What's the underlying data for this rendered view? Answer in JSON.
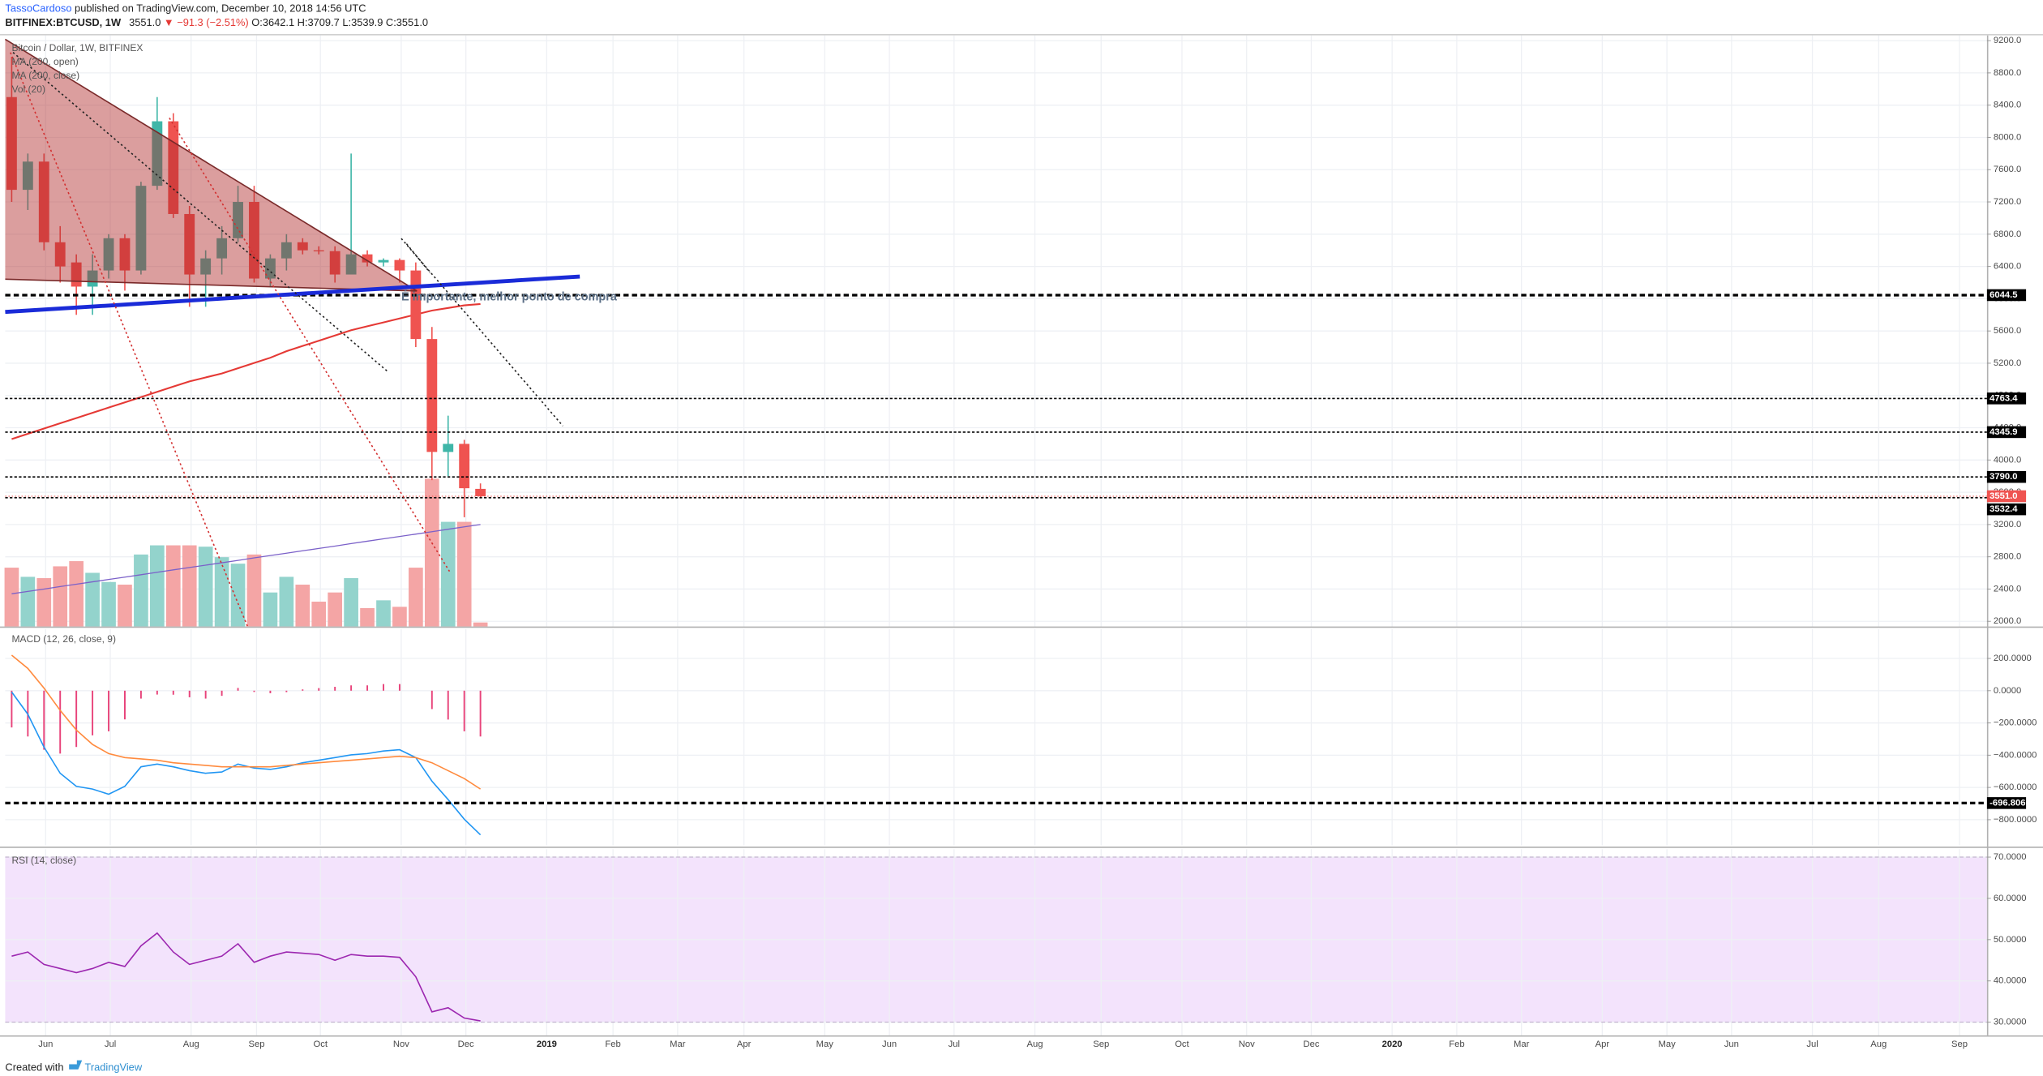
{
  "header": {
    "author": "TassoCardoso",
    "published": "published on TradingView.com, December 10, 2018 14:56 UTC",
    "symbol": "BITFINEX:BTCUSD, 1W",
    "last": "3551.0",
    "change": "▼ −91.3 (−2.51%)",
    "ohlc": [
      {
        "key": "O:",
        "value": "3642.1"
      },
      {
        "key": "H:",
        "value": "3709.7"
      },
      {
        "key": "L:",
        "value": "3539.9"
      },
      {
        "key": "C:",
        "value": "3551.0"
      }
    ]
  },
  "chart_data": [
    {
      "type": "candlestick",
      "title": "Bitcoin / Dollar, 1W, BITFINEX",
      "studies": [
        "MA (200, open)",
        "MA (200, close)",
        "Vol (20)"
      ],
      "annotation": "É importante, melhor ponto de compra",
      "x": [
        0,
        1,
        2,
        3,
        4,
        5,
        6,
        7,
        8,
        9,
        10,
        11,
        12,
        13,
        14,
        15,
        16,
        17,
        18,
        19,
        20,
        21,
        22,
        23,
        24,
        25,
        26,
        27,
        28,
        29
      ],
      "open": [
        8500,
        7350,
        7700,
        6700,
        6450,
        6150,
        6350,
        6750,
        6350,
        7400,
        8200,
        7050,
        6300,
        6500,
        6750,
        7200,
        6250,
        6500,
        6700,
        6600,
        6590,
        6300,
        6550,
        6450,
        6480,
        6350,
        5500,
        4100,
        4200,
        3642.1
      ],
      "high": [
        9000,
        7800,
        7800,
        6900,
        6550,
        6550,
        6800,
        6800,
        7450,
        8500,
        8300,
        7150,
        6600,
        6900,
        7400,
        7400,
        6550,
        6800,
        6750,
        6650,
        6650,
        7800,
        6600,
        6500,
        6500,
        6450,
        5650,
        4550,
        4250,
        3709.7
      ],
      "low": [
        7200,
        7100,
        6600,
        6200,
        5800,
        5800,
        6250,
        6100,
        6300,
        7350,
        7000,
        5900,
        5900,
        6300,
        6700,
        6200,
        6150,
        6350,
        6550,
        6550,
        6200,
        6300,
        6400,
        6400,
        6200,
        5400,
        3750,
        3800,
        3290,
        3539.9
      ],
      "close": [
        7350,
        7700,
        6700,
        6400,
        6150,
        6350,
        6750,
        6350,
        7400,
        8200,
        7050,
        6300,
        6500,
        6750,
        7200,
        6250,
        6500,
        6700,
        6600,
        6590,
        6300,
        6550,
        6450,
        6480,
        6350,
        5500,
        4100,
        4200,
        3650,
        3551
      ],
      "up_color": "#3fb6a8",
      "down_color": "#ef5350",
      "ma": {
        "color": "#e53935",
        "values": [
          4260,
          4325,
          4390,
          4455,
          4520,
          4585,
          4650,
          4715,
          4780,
          4845,
          4910,
          4975,
          5024,
          5073,
          5138,
          5203,
          5268,
          5349,
          5414,
          5479,
          5544,
          5609,
          5658,
          5706,
          5755,
          5804,
          5853,
          5885,
          5918,
          5934
        ]
      },
      "volume": {
        "values": [
          39800,
          33600,
          32700,
          40700,
          44200,
          36300,
          30100,
          28300,
          48700,
          54900,
          54900,
          54900,
          54000,
          46900,
          42500,
          48700,
          23000,
          33600,
          28300,
          16800,
          23000,
          32700,
          12400,
          17700,
          13300,
          39800,
          100000,
          70800,
          70800,
          2700
        ],
        "ma_values": [
          22100,
          23700,
          25300,
          27000,
          28600,
          30200,
          31800,
          33400,
          35000,
          36700,
          38300,
          39900,
          41500,
          43100,
          44700,
          46400,
          48000,
          49600,
          51200,
          52800,
          54400,
          56100,
          57700,
          59300,
          60900,
          62500,
          64100,
          65800,
          67400,
          69000
        ],
        "vlim": [
          0,
          400000
        ],
        "up_color": "#93d3cc",
        "down_color": "#f4a5a5",
        "ma_color": "#7b61c9"
      },
      "levels": [
        {
          "value": 6044.5,
          "width": 2
        },
        {
          "value": 4763.4,
          "width": 1
        },
        {
          "value": 4345.9,
          "width": 1
        },
        {
          "value": 3790,
          "label": "3790.0",
          "width": 1
        },
        {
          "value": 3532.4,
          "width": 1
        }
      ],
      "price_line": {
        "value": 3551,
        "label": "3551.0",
        "color": "#ef5350"
      },
      "xlim": [
        -0.4,
        122.2
      ],
      "xticks": [
        {
          "value": 2.1,
          "label": "Jun"
        },
        {
          "value": 6.1,
          "label": "Jul"
        },
        {
          "value": 11.1,
          "label": "Aug"
        },
        {
          "value": 15.15,
          "label": "Sep"
        },
        {
          "value": 19.1,
          "label": "Oct"
        },
        {
          "value": 24.1,
          "label": "Nov"
        },
        {
          "value": 28.1,
          "label": "Dec"
        },
        {
          "value": 33.1,
          "label": "2019"
        },
        {
          "value": 37.2,
          "label": "Feb"
        },
        {
          "value": 41.2,
          "label": "Mar"
        },
        {
          "value": 45.3,
          "label": "Apr"
        },
        {
          "value": 50.3,
          "label": "May"
        },
        {
          "value": 54.3,
          "label": "Jun"
        },
        {
          "value": 58.3,
          "label": "Jul"
        },
        {
          "value": 63.3,
          "label": "Aug"
        },
        {
          "value": 67.4,
          "label": "Sep"
        },
        {
          "value": 72.4,
          "label": "Oct"
        },
        {
          "value": 76.4,
          "label": "Nov"
        },
        {
          "value": 80.4,
          "label": "Dec"
        },
        {
          "value": 85.4,
          "label": "2020"
        },
        {
          "value": 89.4,
          "label": "Feb"
        },
        {
          "value": 93.4,
          "label": "Mar"
        },
        {
          "value": 98.4,
          "label": "Apr"
        },
        {
          "value": 102.4,
          "label": "May"
        },
        {
          "value": 106.4,
          "label": "Jun"
        },
        {
          "value": 111.4,
          "label": "Jul"
        },
        {
          "value": 115.5,
          "label": "Aug"
        },
        {
          "value": 120.5,
          "label": "Sep"
        }
      ],
      "ylim": [
        1936,
        9265
      ],
      "yticks": [
        {
          "value": 2000,
          "label": "2000.0"
        },
        {
          "value": 2400,
          "label": "2400.0"
        },
        {
          "value": 2800,
          "label": "2800.0"
        },
        {
          "value": 3200,
          "label": "3200.0"
        },
        {
          "value": 3600,
          "label": "3600.0"
        },
        {
          "value": 4000,
          "label": "4000.0"
        },
        {
          "value": 4400,
          "label": "4400.0"
        },
        {
          "value": 4800,
          "label": "4800.0"
        },
        {
          "value": 5200,
          "label": "5200.0"
        },
        {
          "value": 5600,
          "label": "5600.0"
        },
        {
          "value": 6000,
          "label": "6000.0"
        },
        {
          "value": 6400,
          "label": "6400.0"
        },
        {
          "value": 6800,
          "label": "6800.0"
        },
        {
          "value": 7200,
          "label": "7200.0"
        },
        {
          "value": 7600,
          "label": "7600.0"
        },
        {
          "value": 8000,
          "label": "8000.0"
        },
        {
          "value": 8400,
          "label": "8400.0"
        },
        {
          "value": 8800,
          "label": "8800.0"
        },
        {
          "value": 9200,
          "label": "9200.0"
        }
      ],
      "grid": true
    },
    {
      "type": "macd",
      "title": "MACD (12, 26, close, 9)",
      "x": [
        0,
        1,
        2,
        3,
        4,
        5,
        6,
        7,
        8,
        9,
        10,
        11,
        12,
        13,
        14,
        15,
        16,
        17,
        18,
        19,
        20,
        21,
        22,
        23,
        24,
        25,
        26,
        27,
        28,
        29
      ],
      "series": [
        {
          "color": "#2196f3",
          "values": [
            -8,
            -146,
            -350,
            -512,
            -593,
            -610,
            -642,
            -593,
            -472,
            -455,
            -472,
            -496,
            -512,
            -504,
            -455,
            -480,
            -488,
            -472,
            -447,
            -431,
            -415,
            -398,
            -390,
            -374,
            -366,
            -415,
            -561,
            -675,
            -797,
            -894
          ]
        },
        {
          "color": "#ff8a3d",
          "values": [
            220,
            138,
            16,
            -122,
            -244,
            -333,
            -390,
            -415,
            -423,
            -431,
            -447,
            -455,
            -463,
            -472,
            -472,
            -472,
            -472,
            -463,
            -455,
            -447,
            -439,
            -431,
            -423,
            -415,
            -407,
            -415,
            -447,
            -496,
            -545,
            -610
          ]
        }
      ],
      "histogram": {
        "color": "#e8437a",
        "values": [
          -228,
          -284,
          -366,
          -390,
          -349,
          -277,
          -252,
          -178,
          -49,
          -24,
          -25,
          -41,
          -49,
          -32,
          17,
          -8,
          -16,
          -9,
          8,
          16,
          24,
          33,
          33,
          41,
          41,
          0,
          -114,
          -179,
          -252,
          -284
        ]
      },
      "levels": [
        {
          "value": -696.8066,
          "width": 2
        }
      ],
      "ylim": [
        -959,
        382
      ],
      "yticks": [
        {
          "value": 200,
          "label": "200.0000"
        },
        {
          "value": 0,
          "label": "0.0000"
        },
        {
          "value": -200,
          "label": "−200.0000"
        },
        {
          "value": -400,
          "label": "−400.0000"
        },
        {
          "value": -600,
          "label": "−600.0000"
        },
        {
          "value": -800,
          "label": "−800.0000"
        }
      ],
      "grid": true
    },
    {
      "type": "rsi",
      "title": "RSI (14, close)",
      "x": [
        0,
        1,
        2,
        3,
        4,
        5,
        6,
        7,
        8,
        9,
        10,
        11,
        12,
        13,
        14,
        15,
        16,
        17,
        18,
        19,
        20,
        21,
        22,
        23,
        24,
        25,
        26,
        27,
        28,
        29
      ],
      "series": [
        {
          "color": "#9c27b0",
          "values": [
            46,
            47,
            44,
            43,
            42,
            43,
            44.5,
            43.5,
            48.5,
            51.6,
            47,
            44,
            45,
            46,
            49,
            44.5,
            46,
            47,
            46.7,
            46.4,
            45,
            46.4,
            46,
            46,
            45.7,
            41,
            32.5,
            33.5,
            31,
            30.3
          ]
        }
      ],
      "band": [
        30,
        70
      ],
      "band_color": "#f3e3fc",
      "ylim": [
        26.8,
        71.9
      ],
      "yticks": [
        {
          "value": 70,
          "label": "70.0000"
        },
        {
          "value": 60,
          "label": "60.0000"
        },
        {
          "value": 50,
          "label": "50.0000"
        },
        {
          "value": 40,
          "label": "40.0000"
        },
        {
          "value": 30,
          "label": "30.0000"
        }
      ],
      "grid": true
    }
  ],
  "footer": {
    "prefix": "Created with",
    "brand": "TradingView"
  }
}
